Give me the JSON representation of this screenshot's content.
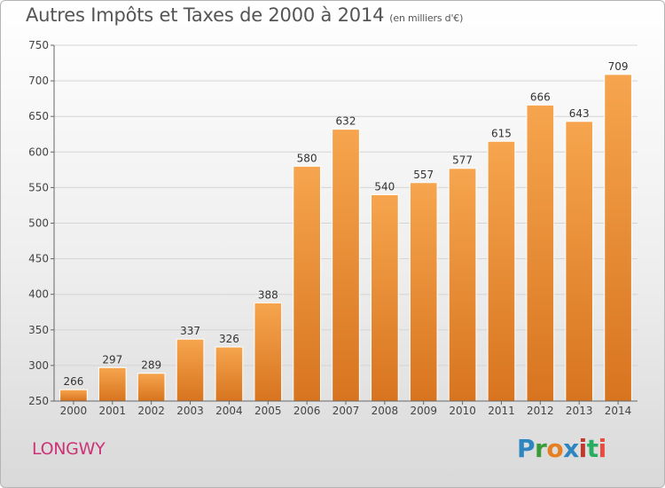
{
  "header": {
    "title": "Autres Impôts et Taxes de 2000 à 2014",
    "subtitle": "(en milliers d'€)"
  },
  "footer": {
    "city": "LONGWY",
    "logo_letters": [
      "P",
      "r",
      "o",
      "x",
      "i",
      "t",
      "i"
    ]
  },
  "colors": {
    "bar_light": "#f6a54e",
    "bar_dark": "#d8741f",
    "city": "#cc3377"
  },
  "chart_data": {
    "type": "bar",
    "title": "Autres Impôts et Taxes de 2000 à 2014",
    "subtitle": "(en milliers d'€)",
    "categories": [
      "2000",
      "2001",
      "2002",
      "2003",
      "2004",
      "2005",
      "2006",
      "2007",
      "2008",
      "2009",
      "2010",
      "2011",
      "2012",
      "2013",
      "2014"
    ],
    "values": [
      266,
      297,
      289,
      337,
      326,
      388,
      580,
      632,
      540,
      557,
      577,
      615,
      666,
      643,
      709
    ],
    "ylim": [
      250,
      750
    ],
    "yticks": [
      250,
      300,
      350,
      400,
      450,
      500,
      550,
      600,
      650,
      700,
      750
    ],
    "grid": true,
    "data_labels": true
  }
}
